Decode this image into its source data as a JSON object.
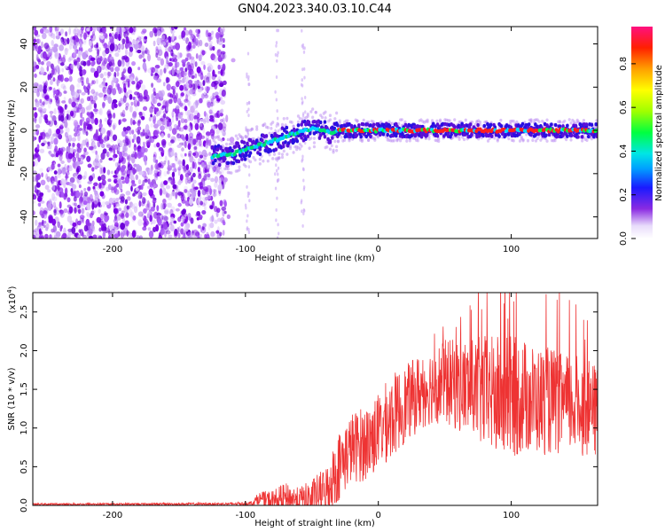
{
  "title": "GN04.2023.340.03.10.C44",
  "chart_data": [
    {
      "type": "heatmap",
      "xlabel": "Height of straight line (km)",
      "ylabel": "Frequency (Hz)",
      "xlim": [
        -260,
        165
      ],
      "ylim": [
        -50,
        48
      ],
      "x_ticks": [
        -200,
        -100,
        0,
        100
      ],
      "y_ticks": [
        -40,
        -20,
        0,
        20,
        40
      ],
      "colorbar": {
        "label": "Normalized spectral amplitude",
        "range": [
          0,
          0.97
        ],
        "ticks": [
          0.0,
          0.2,
          0.4,
          0.6,
          0.8
        ]
      },
      "trace": {
        "description_points_x": [
          -125,
          -110,
          -100,
          -90,
          -80,
          -70,
          -60,
          -50,
          -40,
          -35,
          -30,
          0,
          50,
          100,
          165
        ],
        "description_points_y": [
          -12,
          -11,
          -9,
          -7,
          -5,
          -3,
          -1,
          1,
          0,
          -2,
          0,
          0,
          0,
          0,
          0
        ]
      }
    },
    {
      "type": "line",
      "xlabel": "Height of straight line (km)",
      "ylabel": "SNR (10 * v/v)",
      "y_multiplier": "(x10",
      "y_multiplier_exp": "4",
      "y_multiplier_close": ")",
      "xlim": [
        -260,
        165
      ],
      "ylim": [
        0,
        27500
      ],
      "x_ticks": [
        -200,
        -100,
        0,
        100
      ],
      "y_ticks": [
        0.0,
        0.5,
        1.0,
        1.5,
        2.0,
        2.5
      ],
      "series_color": "#ee3333",
      "envelope_x": [
        -260,
        -110,
        -95,
        -90,
        -80,
        -70,
        -60,
        -50,
        -40,
        -30,
        -20,
        -10,
        0,
        10,
        20,
        30,
        40,
        50,
        60,
        70,
        80,
        90,
        100,
        110,
        120,
        130,
        140,
        150,
        165
      ],
      "envelope_mean": [
        150,
        200,
        300,
        900,
        500,
        900,
        800,
        900,
        1500,
        5000,
        7500,
        8000,
        9500,
        11500,
        13000,
        14500,
        15500,
        16000,
        15500,
        15000,
        14500,
        14000,
        14000,
        14000,
        13500,
        13500,
        13000,
        13000,
        12000
      ],
      "envelope_spread": [
        120,
        150,
        300,
        800,
        1500,
        2000,
        1500,
        2500,
        3500,
        4500,
        4500,
        5000,
        5000,
        5500,
        5000,
        5000,
        5000,
        5500,
        6000,
        6500,
        7500,
        8000,
        8000,
        7500,
        7000,
        7000,
        6500,
        6500,
        6000
      ]
    }
  ]
}
